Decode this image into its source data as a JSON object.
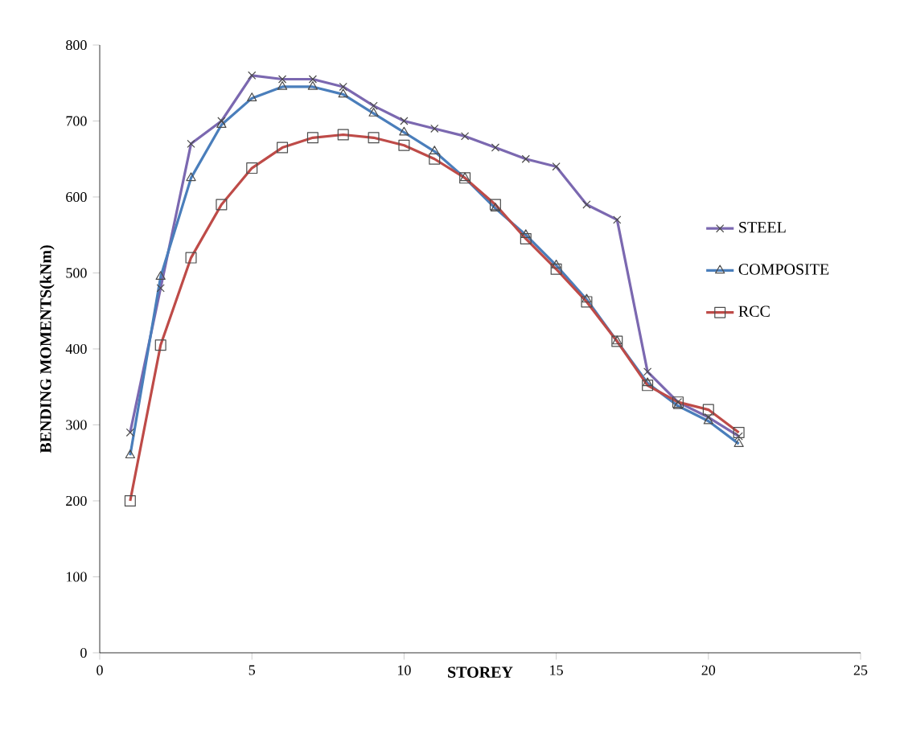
{
  "chart_data": {
    "type": "line",
    "xlabel": "STOREY",
    "ylabel": "BENDING MOMENTS(kNm)",
    "x": [
      1,
      2,
      3,
      4,
      5,
      6,
      7,
      8,
      9,
      10,
      11,
      12,
      13,
      14,
      15,
      16,
      17,
      18,
      19,
      20,
      21
    ],
    "series": [
      {
        "name": "STEEL",
        "color": "#7b68b0",
        "marker": "cross",
        "values": [
          290,
          480,
          670,
          700,
          760,
          755,
          755,
          745,
          720,
          700,
          690,
          680,
          665,
          650,
          640,
          590,
          570,
          370,
          330,
          310,
          285
        ]
      },
      {
        "name": "COMPOSITE",
        "color": "#4a7ebb",
        "marker": "triangle",
        "values": [
          260,
          495,
          625,
          695,
          730,
          745,
          745,
          735,
          710,
          685,
          660,
          625,
          585,
          550,
          510,
          465,
          410,
          355,
          325,
          305,
          275
        ]
      },
      {
        "name": "RCC",
        "color": "#be4b48",
        "marker": "square",
        "values": [
          200,
          405,
          520,
          590,
          638,
          665,
          678,
          682,
          678,
          668,
          650,
          625,
          590,
          545,
          505,
          462,
          410,
          352,
          330,
          320,
          290
        ]
      }
    ],
    "xlim": [
      0,
      25
    ],
    "xticks": [
      0,
      5,
      10,
      15,
      20,
      25
    ],
    "ylim": [
      0,
      800
    ],
    "yticks": [
      0,
      100,
      200,
      300,
      400,
      500,
      600,
      700,
      800
    ],
    "grid": false,
    "legend": "right",
    "line_style": "solid"
  }
}
